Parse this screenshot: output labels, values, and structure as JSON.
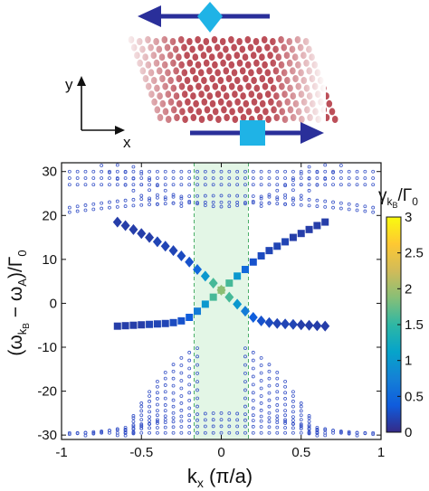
{
  "chart_data": {
    "type": "scatter",
    "title": "",
    "xlabel": "k_x (π/a)",
    "ylabel": "(ω_kB − ω_A)/Γ_0",
    "xlim": [
      -1,
      1
    ],
    "ylim": [
      -31,
      32
    ],
    "xticks": [
      -1,
      -0.5,
      0,
      0.5,
      1
    ],
    "yticks": [
      -30,
      -20,
      -10,
      0,
      10,
      20,
      30
    ],
    "highlight_band": {
      "xmin": -0.17,
      "xmax": 0.17,
      "color": "#e3f6e6",
      "edge_color": "#4caf6a",
      "edge_style": "dashed"
    },
    "grid": false,
    "colorbar": {
      "label": "γ_kB/Γ_0",
      "min": 0,
      "max": 3,
      "ticks": [
        0,
        0.5,
        1,
        1.5,
        2,
        2.5,
        3
      ],
      "tick_labels": [
        "0",
        "0.5",
        "1",
        "1.5",
        "2",
        "2.5",
        "3"
      ],
      "colormap": "parula",
      "stops": [
        "#352a87",
        "#0f5cdd",
        "#1481d6",
        "#06a4ca",
        "#2eb7a4",
        "#87bf77",
        "#d1bb59",
        "#fec832",
        "#f9fb0e"
      ]
    },
    "series": [
      {
        "marker": "diamond",
        "points": [
          {
            "x": -0.65,
            "y": 18.5,
            "c": 0.15
          },
          {
            "x": -0.6,
            "y": 17.7,
            "c": 0.15
          },
          {
            "x": -0.55,
            "y": 16.8,
            "c": 0.15
          },
          {
            "x": -0.5,
            "y": 15.9,
            "c": 0.15
          },
          {
            "x": -0.45,
            "y": 15.0,
            "c": 0.15
          },
          {
            "x": -0.4,
            "y": 14.0,
            "c": 0.2
          },
          {
            "x": -0.35,
            "y": 13.0,
            "c": 0.2
          },
          {
            "x": -0.3,
            "y": 12.0,
            "c": 0.2
          },
          {
            "x": -0.25,
            "y": 10.8,
            "c": 0.25
          },
          {
            "x": -0.2,
            "y": 9.4,
            "c": 0.3
          },
          {
            "x": -0.15,
            "y": 7.7,
            "c": 0.5
          },
          {
            "x": -0.1,
            "y": 6.2,
            "c": 1.0
          },
          {
            "x": -0.05,
            "y": 4.6,
            "c": 1.6
          },
          {
            "x": 0,
            "y": 3.0,
            "c": 1.9
          },
          {
            "x": 0.05,
            "y": 1.4,
            "c": 1.6
          },
          {
            "x": 0.1,
            "y": -0.2,
            "c": 1.0
          },
          {
            "x": 0.15,
            "y": -1.8,
            "c": 0.7
          },
          {
            "x": 0.2,
            "y": -3.2,
            "c": 0.4
          },
          {
            "x": 0.25,
            "y": -4.0,
            "c": 0.3
          },
          {
            "x": 0.3,
            "y": -4.4,
            "c": 0.25
          },
          {
            "x": 0.35,
            "y": -4.6,
            "c": 0.2
          },
          {
            "x": 0.4,
            "y": -4.7,
            "c": 0.2
          },
          {
            "x": 0.45,
            "y": -4.8,
            "c": 0.2
          },
          {
            "x": 0.5,
            "y": -4.9,
            "c": 0.15
          },
          {
            "x": 0.55,
            "y": -5.0,
            "c": 0.15
          },
          {
            "x": 0.6,
            "y": -5.1,
            "c": 0.15
          },
          {
            "x": 0.65,
            "y": -5.2,
            "c": 0.15
          }
        ]
      },
      {
        "marker": "square",
        "points": [
          {
            "x": -0.65,
            "y": -5.2,
            "c": 0.15
          },
          {
            "x": -0.6,
            "y": -5.1,
            "c": 0.15
          },
          {
            "x": -0.55,
            "y": -5.0,
            "c": 0.15
          },
          {
            "x": -0.5,
            "y": -4.9,
            "c": 0.15
          },
          {
            "x": -0.45,
            "y": -4.8,
            "c": 0.2
          },
          {
            "x": -0.4,
            "y": -4.7,
            "c": 0.2
          },
          {
            "x": -0.35,
            "y": -4.6,
            "c": 0.2
          },
          {
            "x": -0.3,
            "y": -4.4,
            "c": 0.25
          },
          {
            "x": -0.25,
            "y": -4.0,
            "c": 0.3
          },
          {
            "x": -0.2,
            "y": -3.2,
            "c": 0.4
          },
          {
            "x": -0.15,
            "y": -1.8,
            "c": 0.7
          },
          {
            "x": -0.1,
            "y": -0.2,
            "c": 1.0
          },
          {
            "x": -0.05,
            "y": 1.4,
            "c": 1.6
          },
          {
            "x": 0,
            "y": 3.0,
            "c": 1.9
          },
          {
            "x": 0.05,
            "y": 4.6,
            "c": 1.6
          },
          {
            "x": 0.1,
            "y": 6.2,
            "c": 1.0
          },
          {
            "x": 0.15,
            "y": 7.7,
            "c": 0.5
          },
          {
            "x": 0.2,
            "y": 9.4,
            "c": 0.3
          },
          {
            "x": 0.25,
            "y": 10.8,
            "c": 0.25
          },
          {
            "x": 0.3,
            "y": 12.0,
            "c": 0.2
          },
          {
            "x": 0.35,
            "y": 13.0,
            "c": 0.2
          },
          {
            "x": 0.4,
            "y": 14.0,
            "c": 0.2
          },
          {
            "x": 0.45,
            "y": 15.0,
            "c": 0.15
          },
          {
            "x": 0.5,
            "y": 15.9,
            "c": 0.15
          },
          {
            "x": 0.55,
            "y": 16.8,
            "c": 0.15
          },
          {
            "x": 0.6,
            "y": 17.7,
            "c": 0.15
          },
          {
            "x": 0.65,
            "y": 18.5,
            "c": 0.15
          }
        ]
      }
    ],
    "background_modes": {
      "marker": "open-circle",
      "color": "#3a55c8",
      "k_values": [
        -0.95,
        -0.9,
        -0.85,
        -0.8,
        -0.75,
        -0.7,
        -0.65,
        -0.6,
        -0.55,
        -0.5,
        -0.45,
        -0.4,
        -0.35,
        -0.3,
        -0.25,
        -0.2,
        -0.15,
        -0.1,
        -0.05,
        0,
        0.05,
        0.1,
        0.15,
        0.2,
        0.25,
        0.3,
        0.35,
        0.4,
        0.45,
        0.5,
        0.55,
        0.6,
        0.65,
        0.7,
        0.75,
        0.8,
        0.85,
        0.9,
        0.95
      ],
      "upper_bands": [
        {
          "offset": 30.0,
          "curv": 0
        },
        {
          "offset": 28.5,
          "curv": 0
        },
        {
          "offset": 27.0,
          "curv": 0
        },
        {
          "offset": 24.5,
          "curv": -3.0
        },
        {
          "offset": 23.0,
          "curv": -2.5
        },
        {
          "offset": 22.0,
          "curv": 30.0
        },
        {
          "offset": 20.5,
          "curv": 26.0
        },
        {
          "offset": 19.0,
          "curv": 22.0
        }
      ],
      "lower_bands": [
        {
          "offset": -9.0,
          "curv": -55.0
        },
        {
          "offset": -11.0,
          "curv": -50.0
        },
        {
          "offset": -13.0,
          "curv": -46.0
        },
        {
          "offset": -15.0,
          "curv": -42.0
        },
        {
          "offset": -17.0,
          "curv": -38.0
        },
        {
          "offset": -19.0,
          "curv": -34.0
        },
        {
          "offset": -21.0,
          "curv": -28.0
        },
        {
          "offset": -23.0,
          "curv": -22.0
        },
        {
          "offset": -25.0,
          "curv": -12.0
        },
        {
          "offset": -26.5,
          "curv": -5.0
        },
        {
          "offset": -28.0,
          "curv": -2.0
        },
        {
          "offset": -29.5,
          "curv": 0
        }
      ]
    }
  },
  "schematic": {
    "axis_y_label": "y",
    "axis_x_label": "x",
    "arrow_color": "#2a2f9a",
    "diamond_color": "#1fb3e6",
    "square_color": "#1fb3e6",
    "atom_color": "#b0303c"
  }
}
